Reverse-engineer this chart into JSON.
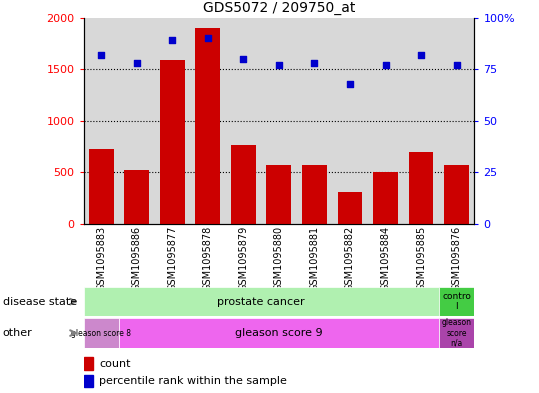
{
  "title": "GDS5072 / 209750_at",
  "samples": [
    "GSM1095883",
    "GSM1095886",
    "GSM1095877",
    "GSM1095878",
    "GSM1095879",
    "GSM1095880",
    "GSM1095881",
    "GSM1095882",
    "GSM1095884",
    "GSM1095885",
    "GSM1095876"
  ],
  "counts": [
    730,
    520,
    1590,
    1900,
    770,
    575,
    575,
    310,
    500,
    700,
    575
  ],
  "percentiles": [
    82,
    78,
    89,
    90,
    80,
    77,
    78,
    68,
    77,
    82,
    77
  ],
  "ylim_left": [
    0,
    2000
  ],
  "ylim_right": [
    0,
    100
  ],
  "yticks_left": [
    0,
    500,
    1000,
    1500,
    2000
  ],
  "yticks_right": [
    0,
    25,
    50,
    75,
    100
  ],
  "bar_color": "#cc0000",
  "dot_color": "#0000cc",
  "bg_color": "#d8d8d8",
  "grid_dotted_values": [
    500,
    1000,
    1500
  ],
  "ds_green_light": "#b0f0b0",
  "ds_green_dark": "#44cc44",
  "other_pink_light": "#cc88cc",
  "other_pink_mid": "#ee66ee",
  "other_pink_dark": "#aa44aa",
  "arrow_label_disease": "disease state",
  "arrow_label_other": "other",
  "legend_count": "count",
  "legend_percentile": "percentile rank within the sample"
}
